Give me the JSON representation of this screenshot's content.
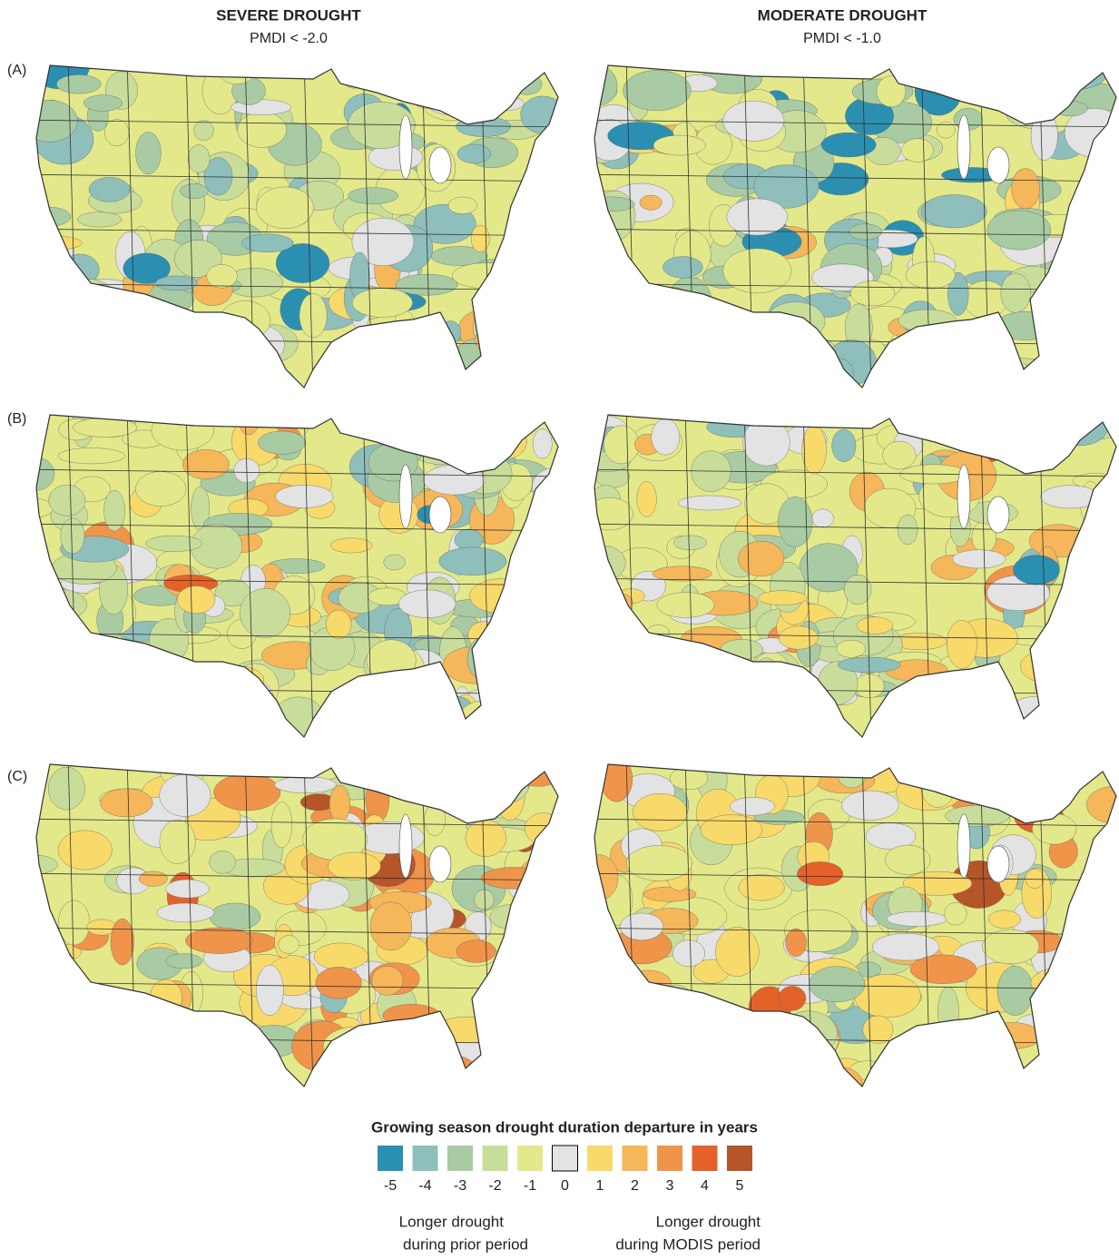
{
  "columns": [
    {
      "title": "SEVERE DROUGHT",
      "subtitle": "PMDI < -2.0"
    },
    {
      "title": "MODERATE DROUGHT",
      "subtitle": "PMDI < -1.0"
    }
  ],
  "rows": [
    "(A)",
    "(B)",
    "(C)"
  ],
  "legend": {
    "title": "Growing season drought duration departure in years",
    "items": [
      {
        "value": -5,
        "color": "#2b8fb1"
      },
      {
        "value": -4,
        "color": "#8fbfbb"
      },
      {
        "value": -3,
        "color": "#a9cba3"
      },
      {
        "value": -2,
        "color": "#c9dd9b"
      },
      {
        "value": -1,
        "color": "#e3e98a"
      },
      {
        "value": 0,
        "color": "#e3e3e3"
      },
      {
        "value": 1,
        "color": "#f8da6b"
      },
      {
        "value": 2,
        "color": "#f5b75a"
      },
      {
        "value": 3,
        "color": "#f0944a"
      },
      {
        "value": 4,
        "color": "#e4622a"
      },
      {
        "value": 5,
        "color": "#b55628"
      }
    ],
    "left_note": [
      "Longer drought",
      "during prior period"
    ],
    "right_note": [
      "Longer drought",
      "during MODIS period"
    ]
  }
}
